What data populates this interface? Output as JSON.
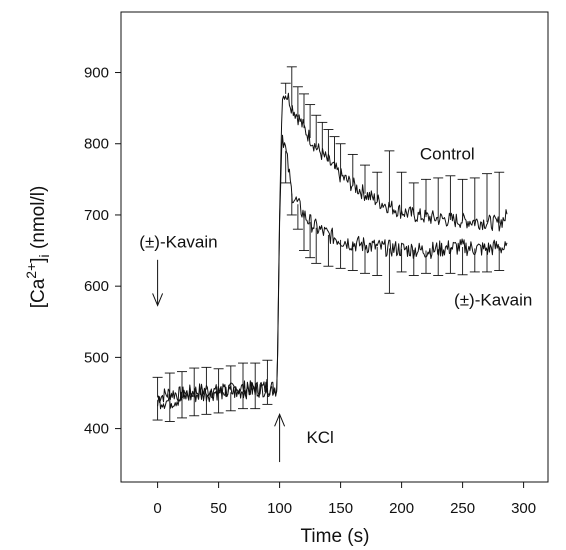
{
  "chart_data": {
    "type": "line",
    "xlabel": "Time (s)",
    "ylabel": {
      "base": "[Ca",
      "sup": "2+",
      "close": "]",
      "sub": "i",
      "tail": " (nmol/l)"
    },
    "xlim": [
      -30,
      320
    ],
    "ylim": [
      325,
      985
    ],
    "xticks": [
      0,
      50,
      100,
      150,
      200,
      250,
      300
    ],
    "yticks": [
      400,
      500,
      600,
      700,
      800,
      900
    ],
    "grid": false,
    "legend": "none",
    "series": [
      {
        "name": "Control",
        "x": [
          0,
          10,
          20,
          30,
          40,
          50,
          60,
          70,
          80,
          90,
          98,
          100,
          102,
          104,
          106,
          108,
          110,
          115,
          120,
          125,
          130,
          140,
          150,
          160,
          170,
          180,
          190,
          200,
          210,
          220,
          230,
          240,
          250,
          260,
          270,
          280,
          287
        ],
        "y": [
          444,
          450,
          448,
          452,
          455,
          451,
          454,
          457,
          456,
          458,
          457,
          700,
          860,
          872,
          868,
          862,
          852,
          838,
          822,
          808,
          795,
          775,
          755,
          742,
          730,
          720,
          712,
          705,
          700,
          697,
          695,
          693,
          692,
          691,
          690,
          688,
          700
        ],
        "error_x": [
          0,
          10,
          20,
          30,
          40,
          50,
          60,
          70,
          80,
          90,
          105,
          110,
          115,
          120,
          125,
          130,
          135,
          140,
          145,
          150,
          160,
          170,
          180,
          190,
          200,
          210,
          220,
          230,
          240,
          250,
          260,
          270,
          280
        ],
        "error_upper": [
          472,
          478,
          480,
          485,
          486,
          484,
          488,
          492,
          492,
          496,
          885,
          908,
          880,
          870,
          855,
          840,
          830,
          820,
          810,
          800,
          785,
          770,
          760,
          790,
          760,
          745,
          750,
          752,
          755,
          750,
          752,
          758,
          760
        ]
      },
      {
        "name": "(±)-Kavain",
        "x": [
          0,
          10,
          20,
          30,
          40,
          50,
          60,
          70,
          80,
          90,
          98,
          100,
          102,
          104,
          106,
          108,
          110,
          115,
          120,
          125,
          130,
          140,
          150,
          160,
          170,
          180,
          190,
          200,
          210,
          220,
          230,
          240,
          250,
          260,
          270,
          280,
          287
        ],
        "y": [
          440,
          438,
          444,
          447,
          449,
          452,
          451,
          453,
          455,
          457,
          455,
          690,
          815,
          800,
          780,
          755,
          730,
          715,
          700,
          690,
          682,
          672,
          665,
          660,
          658,
          655,
          653,
          652,
          651,
          650,
          652,
          654,
          655,
          653,
          652,
          656,
          650
        ],
        "error_x": [
          0,
          10,
          20,
          30,
          40,
          50,
          60,
          70,
          80,
          90,
          105,
          110,
          115,
          120,
          125,
          130,
          140,
          150,
          160,
          170,
          180,
          190,
          200,
          210,
          220,
          230,
          240,
          250,
          260,
          270,
          280
        ],
        "error_lower": [
          412,
          410,
          415,
          418,
          420,
          422,
          425,
          428,
          428,
          434,
          745,
          700,
          680,
          650,
          640,
          632,
          628,
          625,
          622,
          618,
          615,
          590,
          620,
          615,
          618,
          615,
          618,
          616,
          620,
          620,
          622
        ]
      }
    ],
    "annotations": [
      {
        "text": "Control",
        "x": 215,
        "y": 778,
        "arrow": false
      },
      {
        "text": "(±)-Kavain",
        "x": 243,
        "y": 573,
        "arrow": false
      },
      {
        "text": "(±)-Kavain",
        "x": -15,
        "y": 654,
        "arrow": "down",
        "arrow_x": 0,
        "arrow_from": 637,
        "arrow_to": 573
      },
      {
        "text": "KCl",
        "x": 122,
        "y": 380,
        "arrow": "up",
        "arrow_x": 100,
        "arrow_from": 353,
        "arrow_to": 420
      }
    ]
  }
}
